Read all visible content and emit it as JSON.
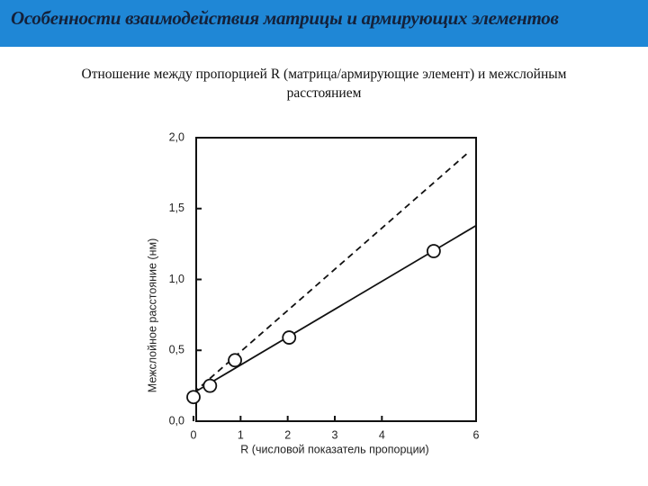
{
  "header": {
    "title": "Особенности взаимодействия матрицы и армирующих элементов"
  },
  "subtitle_lines": [
    "Отношение между пропорцией R (матрица/армирующие элемент) и межслойным",
    "расстоянием"
  ],
  "chart_data": {
    "type": "scatter",
    "x_label": "R (числовой показатель пропорции)",
    "y_label": "Межслойное расстояние (нм)",
    "xlim": [
      0,
      6
    ],
    "ylim": [
      0,
      2
    ],
    "xticks": [
      0,
      1,
      2,
      3,
      4,
      6
    ],
    "yticks": [
      {
        "value": 0,
        "label": "0,0"
      },
      {
        "value": 0.5,
        "label": "0,5"
      },
      {
        "value": 1,
        "label": "1,0"
      },
      {
        "value": 1.5,
        "label": "1,5"
      },
      {
        "value": 2,
        "label": "2,0"
      }
    ],
    "series": [
      {
        "mode": "markers",
        "color": "#111111",
        "x": [
          0,
          0.35,
          0.88,
          2.03,
          5.1
        ],
        "values": [
          0.17,
          0.25,
          0.43,
          0.59,
          1.2
        ]
      },
      {
        "mode": "line",
        "color": "#111111",
        "dash": false,
        "x": [
          0,
          6
        ],
        "values": [
          0.2,
          1.38
        ]
      },
      {
        "mode": "line",
        "color": "#111111",
        "dash": true,
        "x": [
          0,
          5.85
        ],
        "values": [
          0.2,
          1.9
        ]
      }
    ]
  }
}
